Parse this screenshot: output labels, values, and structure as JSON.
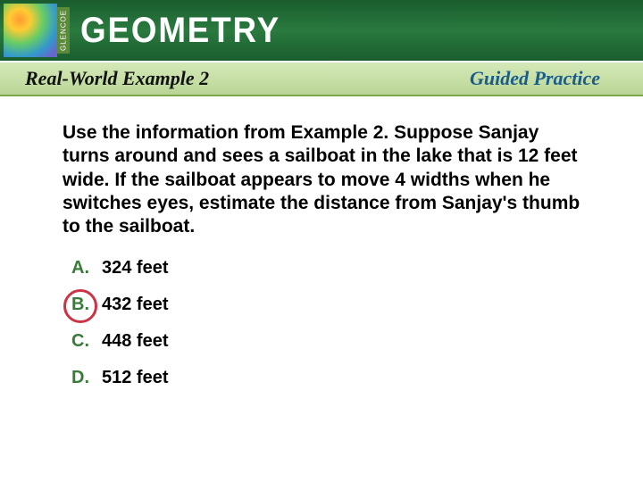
{
  "header": {
    "brand": "GLENCOE",
    "title": "GEOMETRY"
  },
  "subheader": {
    "example_label": "Real-World Example 2",
    "guided_label": "Guided Practice"
  },
  "question": "Use the information from Example 2. Suppose Sanjay turns around and sees a sailboat in the lake that is 12 feet wide. If the sailboat appears to move 4 widths when he switches eyes, estimate the distance from Sanjay's thumb to the sailboat.",
  "choices": [
    {
      "letter": "A.",
      "text": "324 feet",
      "circled": false
    },
    {
      "letter": "B.",
      "text": "432 feet",
      "circled": true
    },
    {
      "letter": "C.",
      "text": "448 feet",
      "circled": false
    },
    {
      "letter": "D.",
      "text": "512 feet",
      "circled": false
    }
  ],
  "colors": {
    "header_green": "#1a5c2e",
    "subheader_green": "#c8e0a8",
    "choice_letter": "#3a7a3a",
    "circle": "#cc3344",
    "guided_blue": "#1a5c8a"
  }
}
